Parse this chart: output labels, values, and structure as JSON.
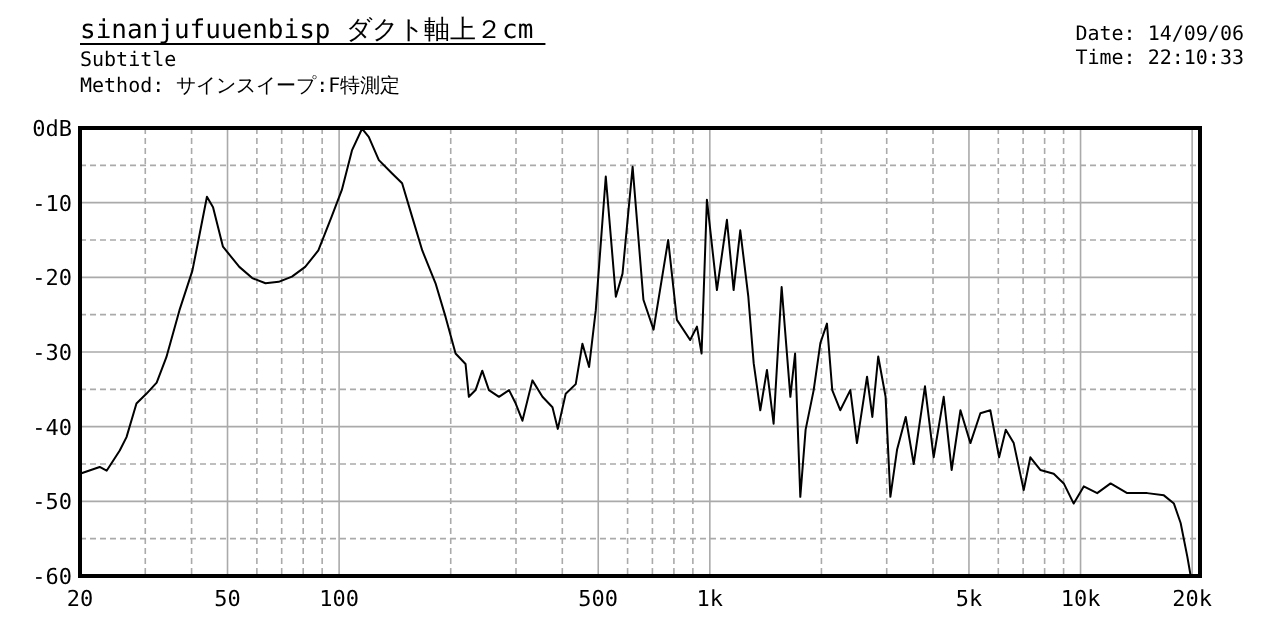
{
  "chart_data": {
    "type": "line",
    "title": "sinanjufuuenbisp ダクト軸上２cm",
    "subtitle": "Subtitle",
    "annotations": [
      "Method: サインスイープ:F特測定",
      "Date: 14/09/06",
      "Time: 22:10:33"
    ],
    "log": "x",
    "grid": true,
    "marker": "none",
    "line_style": "solid",
    "xlim": [
      20,
      21000
    ],
    "ylim": [
      -60,
      0
    ],
    "xticks": [
      20,
      50,
      100,
      500,
      {
        "value": 1000,
        "label": "1k"
      },
      {
        "value": 5000,
        "label": "5k"
      },
      {
        "value": 10000,
        "label": "10k"
      },
      {
        "value": 20000,
        "label": "20k"
      }
    ],
    "yticks": [
      -60,
      -50,
      -40,
      -30,
      -20,
      -10,
      {
        "value": 0,
        "label": "0dB"
      }
    ],
    "series": [
      {
        "color": "#000000",
        "x": [
          20,
          22.6,
          23.6,
          25.6,
          26.7,
          28.4,
          30.2,
          32.2,
          34.2,
          37.1,
          40.2,
          41.9,
          44,
          45.7,
          48.6,
          53.8,
          58.3,
          63.3,
          68.7,
          74.6,
          81,
          87.9,
          95.4,
          101.7,
          108.3,
          115.3,
          120.2,
          128,
          139,
          147.9,
          157.4,
          167.6,
          182,
          193.7,
          206.1,
          219.3,
          223.9,
          233.4,
          243.3,
          253.6,
          269.9,
          287.3,
          299.5,
          312.2,
          332.2,
          353.6,
          376.3,
          389,
          408.5,
          434.8,
          453.2,
          472.4,
          492.4,
          524,
          557.8,
          581.4,
          619,
          662,
          705,
          772,
          815,
          885,
          923,
          950,
          982,
          1045,
          1112,
          1159,
          1208,
          1270,
          1313,
          1368,
          1426,
          1486,
          1562,
          1649,
          1698,
          1754,
          1813,
          1906,
          1987,
          2070,
          2139,
          2248,
          2393,
          2494,
          2655,
          2744,
          2846,
          2979,
          3069,
          3199,
          3376,
          3548,
          3805,
          4016,
          4274,
          4490,
          4743,
          5046,
          5368,
          5710,
          6030,
          6285,
          6603,
          7026,
          7322,
          7788,
          8465,
          9010,
          9584,
          10200,
          11090,
          12050,
          13360,
          15130,
          16780,
          17860,
          18620,
          19410,
          19820
        ],
        "values": [
          -46.3,
          -45.4,
          -45.9,
          -43.2,
          -41.4,
          -36.9,
          -35.6,
          -34.1,
          -30.7,
          -24.4,
          -19.1,
          -14.6,
          -9.2,
          -10.6,
          -15.9,
          -18.6,
          -20.1,
          -20.8,
          -20.6,
          -19.9,
          -18.6,
          -16.4,
          -11.9,
          -8.3,
          -3,
          -0.1,
          -1.2,
          -4.3,
          -6.1,
          -7.4,
          -11.9,
          -16.4,
          -20.8,
          -25.3,
          -30.2,
          -31.6,
          -36,
          -35.1,
          -32.5,
          -35.1,
          -36,
          -35.1,
          -36.9,
          -39.2,
          -33.8,
          -36,
          -37.4,
          -40.3,
          -35.6,
          -34.3,
          -28.9,
          -32,
          -24.4,
          -6.5,
          -22.6,
          -19.5,
          -5.2,
          -23,
          -27,
          -15,
          -25.7,
          -28.4,
          -26.6,
          -30.2,
          -9.6,
          -21.7,
          -12.3,
          -21.7,
          -13.7,
          -22.6,
          -31.5,
          -37.8,
          -32.4,
          -39.6,
          -21.3,
          -36,
          -30.2,
          -49.4,
          -40.4,
          -35.1,
          -28.8,
          -26.2,
          -35.1,
          -37.8,
          -35.1,
          -42.2,
          -33.3,
          -38.7,
          -30.6,
          -36,
          -49.4,
          -43.1,
          -38.7,
          -45,
          -34.6,
          -44.1,
          -36,
          -45.8,
          -37.8,
          -42.2,
          -38.2,
          -37.8,
          -44.1,
          -40.4,
          -42.2,
          -48.5,
          -44.1,
          -45.8,
          -46.3,
          -47.6,
          -50.3,
          -48,
          -48.9,
          -47.6,
          -48.9,
          -48.9,
          -49.2,
          -50.3,
          -52.9,
          -57.4,
          -60
        ]
      }
    ]
  }
}
